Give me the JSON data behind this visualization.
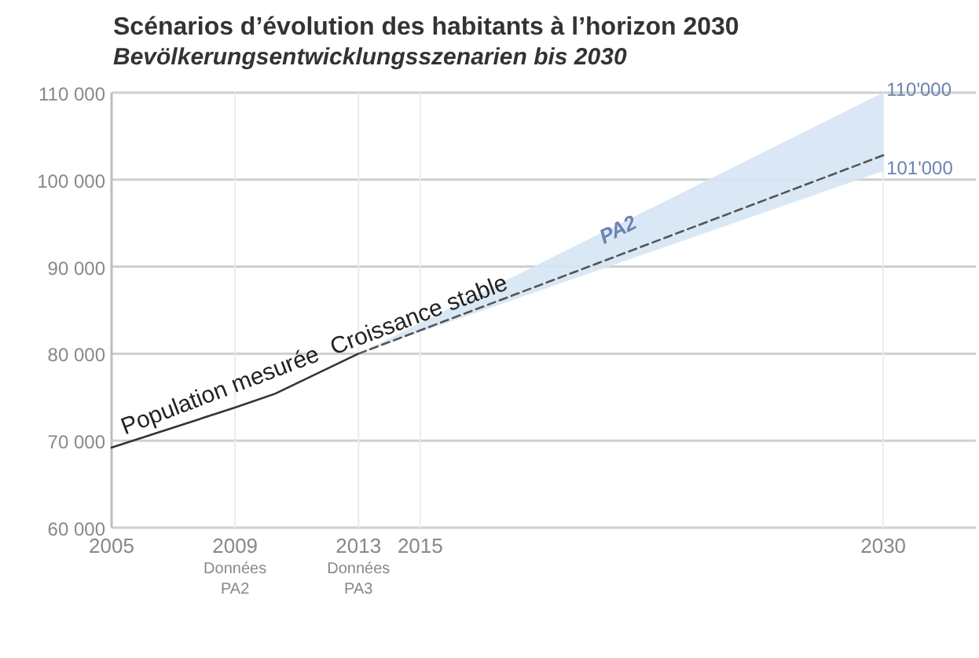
{
  "chart_data": {
    "type": "line",
    "title": "Scénarios d’évolution des habitants à l’horizon 2030",
    "subtitle": "Bevölkerungsentwicklungsszenarien bis 2030",
    "series": [
      {
        "name": "Population mesurée",
        "color": "#333333",
        "x": [
          2005,
          2009,
          2010.3,
          2013
        ],
        "values": [
          69200,
          73800,
          75400,
          80000
        ],
        "line_style": "solid"
      },
      {
        "name": "Croissance stable",
        "color": "#555555",
        "x": [
          2013,
          2030
        ],
        "values": [
          80000,
          102800
        ],
        "lower": [
          80000,
          101000
        ],
        "upper": [
          80000,
          110000
        ],
        "line_style": "dashed"
      }
    ],
    "annotations": [
      {
        "text": "110'000",
        "x": 2030,
        "y": 110000
      },
      {
        "text": "101'000",
        "x": 2030,
        "y": 101000
      },
      "PA2"
    ],
    "xlim": [
      2005,
      2033
    ],
    "xticks": [
      2005,
      {
        "value": 2009,
        "label": "2009\nDonnées\nPA2"
      },
      {
        "value": 2013,
        "label": "2013\nDonnées\nPA3"
      },
      2015,
      2030
    ],
    "ylim": [
      60000,
      110000
    ],
    "yticks": [
      {
        "value": 60000,
        "label": "60 000"
      },
      {
        "value": 70000,
        "label": "70 000"
      },
      {
        "value": 80000,
        "label": "80 000"
      },
      {
        "value": 90000,
        "label": "90 000"
      },
      {
        "value": 100000,
        "label": "100 000"
      },
      {
        "value": 110000,
        "label": "110 000"
      }
    ],
    "grid": true,
    "marker": "none"
  }
}
